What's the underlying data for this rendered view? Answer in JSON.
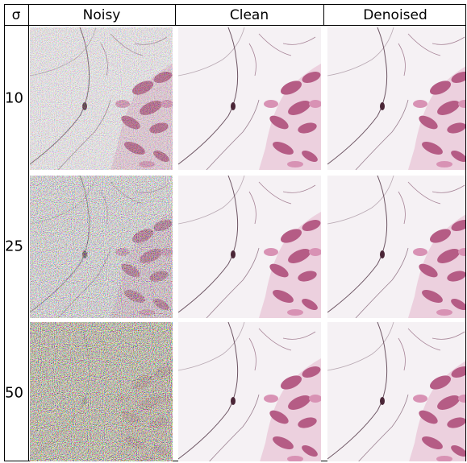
{
  "table": {
    "header": [
      "σ",
      "Noisy",
      "Clean",
      "Denoised"
    ],
    "row_labels": [
      10,
      25,
      50
    ]
  }
}
